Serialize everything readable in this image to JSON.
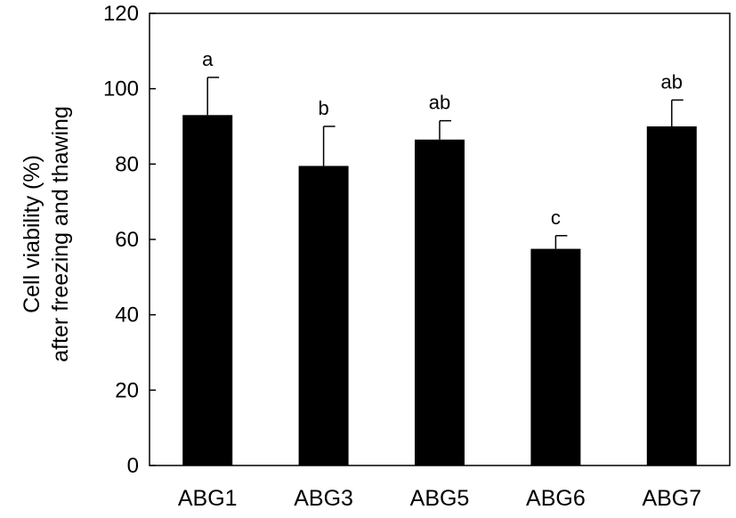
{
  "chart_data": {
    "type": "bar",
    "title": "",
    "xlabel": "",
    "ylabel_lines": [
      "Cell viability (%)",
      "after freezing and thawing"
    ],
    "categories": [
      "ABG1",
      "ABG3",
      "ABG5",
      "ABG6",
      "ABG7"
    ],
    "series": [
      {
        "values": [
          93,
          79.5,
          86.5,
          57.5,
          90
        ],
        "error": [
          10,
          10.5,
          5,
          3.5,
          7
        ],
        "significance": [
          "a",
          "b",
          "ab",
          "c",
          "ab"
        ]
      }
    ],
    "ylim": [
      0,
      120
    ],
    "yticks": [
      0,
      20,
      40,
      60,
      80,
      100,
      120
    ],
    "grid": false,
    "legend": "none",
    "bar_color": "#000000"
  }
}
